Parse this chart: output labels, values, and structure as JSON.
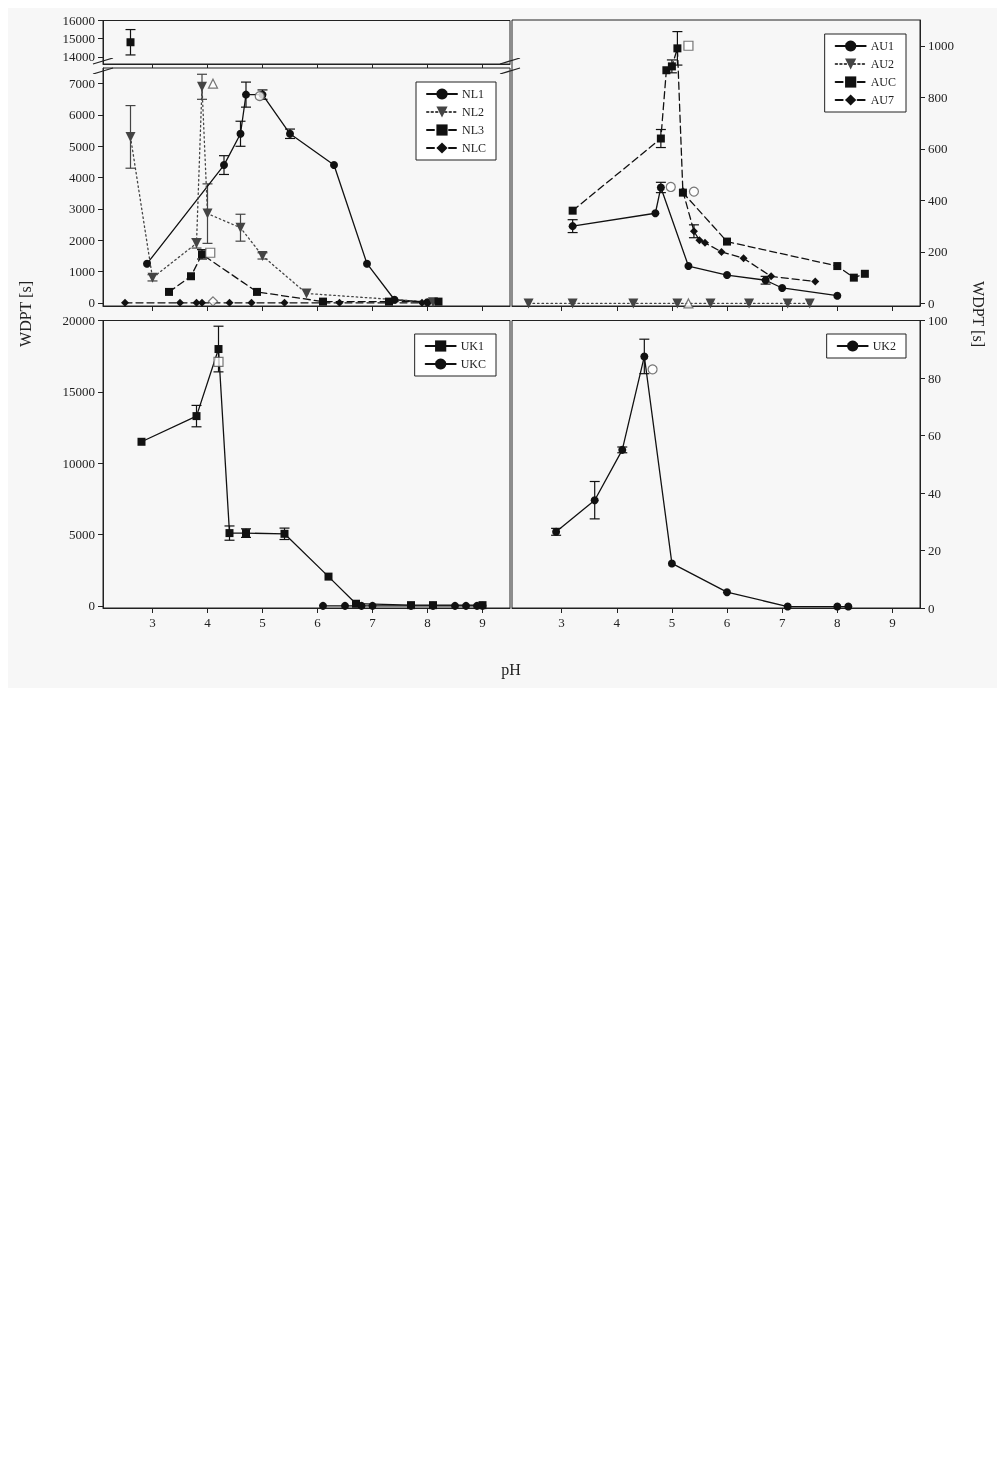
{
  "chart_data": [
    {
      "type": "line",
      "xlim": [
        2.1,
        9.5
      ],
      "xticks": [
        3,
        4,
        5,
        6,
        7,
        8,
        9
      ],
      "ylim": [
        13600,
        16000
      ],
      "yticks": [
        14000,
        15000,
        16000
      ],
      "tick_labels": "y",
      "legend": false,
      "series": [
        {
          "color": "#111111",
          "marker": "square",
          "line_style": "dashed",
          "x": [
            2.6
          ],
          "values": [
            14800
          ],
          "errors": [
            700
          ]
        }
      ]
    },
    {
      "type": "line",
      "xlim": [
        2.1,
        9.5
      ],
      "xticks": [
        3,
        4,
        5,
        6,
        7,
        8,
        9
      ],
      "ylim": [
        -100,
        7500
      ],
      "yticks": [
        0,
        1000,
        2000,
        3000,
        4000,
        5000,
        6000,
        7000
      ],
      "tick_labels": "y",
      "ylabel": "WDPT [s]",
      "legend": "top right",
      "series": [
        {
          "name": "NL1",
          "color": "#111111",
          "marker": "circle",
          "line_style": "solid",
          "x": [
            2.9,
            4.3,
            4.6,
            4.7,
            5.0,
            5.5,
            6.3,
            6.9,
            7.4,
            8.0
          ],
          "values": [
            1250,
            4400,
            5400,
            6650,
            6650,
            5400,
            4400,
            1250,
            100,
            20
          ],
          "errors": [
            null,
            300,
            400,
            400,
            150,
            150,
            null,
            null,
            null,
            null
          ]
        },
        {
          "name": "NL2",
          "color": "#444444",
          "marker": "triangle",
          "line_style": "dotted",
          "x": [
            2.6,
            3.0,
            3.8,
            3.9,
            4.0,
            4.6,
            5.0,
            5.8,
            8.1
          ],
          "values": [
            5300,
            800,
            1900,
            6900,
            2850,
            2400,
            1500,
            300,
            20
          ],
          "errors": [
            1000,
            100,
            150,
            400,
            950,
            430,
            100,
            null,
            null
          ]
        },
        {
          "name": "NL3",
          "color": "#111111",
          "marker": "square",
          "line_style": "dashed",
          "x": [
            3.3,
            3.7,
            3.9,
            4.9,
            6.1,
            7.3,
            8.2
          ],
          "values": [
            350,
            850,
            1550,
            350,
            40,
            40,
            40
          ],
          "errors": [
            null,
            null,
            150,
            null,
            null,
            null,
            null
          ]
        },
        {
          "name": "NLC",
          "color": "#111111",
          "marker": "diamond",
          "line_style": "dashed",
          "x": [
            2.5,
            3.5,
            3.8,
            3.9,
            4.4,
            4.8,
            5.4,
            6.4,
            7.9
          ],
          "values": [
            0,
            0,
            0,
            0,
            0,
            0,
            0,
            0,
            0
          ]
        },
        {
          "type": "scatter",
          "color": "#555555",
          "marker": "triangle",
          "x": [
            4.1
          ],
          "values": [
            7000
          ]
        },
        {
          "type": "scatter",
          "color": "#555555",
          "marker": "square",
          "x": [
            4.05
          ],
          "values": [
            1600
          ]
        },
        {
          "type": "scatter",
          "color": "#555555",
          "marker": "diamond",
          "x": [
            4.1
          ],
          "values": [
            50
          ]
        },
        {
          "type": "scatter",
          "color": "#555555",
          "marker": "circle",
          "x": [
            4.95
          ],
          "values": [
            6600
          ]
        }
      ]
    },
    {
      "type": "line",
      "xlim": [
        2.1,
        9.5
      ],
      "xticks": [
        3,
        4,
        5,
        6,
        7,
        8,
        9
      ],
      "y2lim": [
        -10,
        1100
      ],
      "y2ticks": [
        0,
        200,
        400,
        600,
        800,
        1000
      ],
      "tick_labels": "y",
      "y2label": "WDPT [s]",
      "legend": "top right",
      "series": [
        {
          "name": "AU1",
          "axis": "y2",
          "color": "#111111",
          "marker": "circle",
          "line_style": "solid",
          "x": [
            3.2,
            4.7,
            4.8,
            5.3,
            6.0,
            6.7,
            7.0,
            8.0
          ],
          "values": [
            300,
            350,
            450,
            145,
            110,
            90,
            60,
            30
          ],
          "errors": [
            25,
            null,
            20,
            null,
            null,
            15,
            null,
            null
          ]
        },
        {
          "name": "AU2",
          "axis": "y2",
          "color": "#444444",
          "marker": "triangle",
          "line_style": "dotted",
          "x": [
            2.4,
            3.2,
            4.3,
            5.1,
            5.7,
            6.4,
            7.1,
            7.5
          ],
          "values": [
            0,
            0,
            0,
            0,
            0,
            0,
            0,
            0
          ]
        },
        {
          "name": "AUC",
          "axis": "y2",
          "color": "#111111",
          "marker": "square",
          "line_style": "dashed",
          "x": [
            3.2,
            4.8,
            4.9,
            5.0,
            5.1,
            5.2,
            6.0,
            8.0,
            8.3,
            8.5
          ],
          "values": [
            360,
            640,
            905,
            920,
            990,
            430,
            240,
            145,
            100,
            115
          ],
          "errors": [
            null,
            35,
            null,
            25,
            65,
            null,
            null,
            null,
            null,
            null
          ]
        },
        {
          "name": "AU7",
          "axis": "y2",
          "color": "#111111",
          "marker": "diamond",
          "line_style": "dashed",
          "x": [
            5.2,
            5.4,
            5.5,
            5.6,
            5.9,
            6.3,
            6.8,
            7.6
          ],
          "values": [
            435,
            280,
            245,
            235,
            200,
            175,
            105,
            85
          ],
          "errors": [
            null,
            25,
            null,
            null,
            null,
            null,
            null,
            null
          ]
        },
        {
          "type": "scatter",
          "axis": "y2",
          "color": "#555555",
          "marker": "square",
          "x": [
            5.3
          ],
          "values": [
            1000
          ]
        },
        {
          "type": "scatter",
          "axis": "y2",
          "color": "#555555",
          "marker": "circle",
          "x": [
            4.98,
            5.4
          ],
          "values": [
            452,
            434
          ]
        },
        {
          "type": "scatter",
          "axis": "y2",
          "color": "#555555",
          "marker": "triangle",
          "x": [
            5.3
          ],
          "values": [
            0
          ]
        }
      ]
    },
    {
      "type": "line",
      "xlim": [
        2.1,
        9.5
      ],
      "xticks": [
        3,
        4,
        5,
        6,
        7,
        8,
        9
      ],
      "ylim": [
        -150,
        20000
      ],
      "yticks": [
        0,
        5000,
        10000,
        15000,
        20000
      ],
      "xlabel": "pH",
      "legend": "top right",
      "series": [
        {
          "name": "UK1",
          "color": "#111111",
          "marker": "square",
          "line_style": "solid",
          "x": [
            2.8,
            3.8,
            4.2,
            4.4,
            4.7,
            5.4,
            6.2,
            6.7,
            7.7,
            8.1,
            9.0
          ],
          "values": [
            11500,
            13300,
            18000,
            5100,
            5100,
            5050,
            2050,
            150,
            50,
            50,
            50
          ],
          "errors": [
            null,
            750,
            1600,
            500,
            300,
            400,
            null,
            null,
            null,
            null,
            null
          ]
        },
        {
          "name": "UKC",
          "color": "#111111",
          "marker": "circle",
          "line_style": "solid",
          "x": [
            6.1,
            6.5,
            6.8,
            7.0,
            7.7,
            8.1,
            8.5,
            8.7,
            8.9,
            9.0
          ],
          "values": [
            0,
            0,
            0,
            0,
            0,
            0,
            0,
            0,
            0,
            0
          ]
        },
        {
          "type": "scatter",
          "color": "#555555",
          "marker": "square",
          "x": [
            4.2
          ],
          "values": [
            17100
          ]
        }
      ]
    },
    {
      "type": "line",
      "xlim": [
        2.1,
        9.5
      ],
      "xticks": [
        3,
        4,
        5,
        6,
        7,
        8,
        9
      ],
      "y2lim": [
        0,
        100
      ],
      "y2ticks": [
        0,
        20,
        40,
        60,
        80,
        100
      ],
      "legend": "top right",
      "series": [
        {
          "name": "UK2",
          "axis": "y2",
          "color": "#111111",
          "marker": "circle",
          "line_style": "solid",
          "x": [
            2.9,
            3.6,
            4.1,
            4.5,
            5.0,
            6.0,
            7.1,
            8.0,
            8.2
          ],
          "values": [
            26.5,
            37.5,
            55,
            87.5,
            15.5,
            5.5,
            0.5,
            0.5,
            0.5
          ],
          "errors": [
            1.2,
            6.5,
            1,
            6,
            null,
            null,
            null,
            null,
            null
          ]
        },
        {
          "type": "scatter",
          "axis": "y2",
          "color": "#555555",
          "marker": "circle",
          "x": [
            4.65
          ],
          "values": [
            83
          ]
        }
      ]
    }
  ]
}
